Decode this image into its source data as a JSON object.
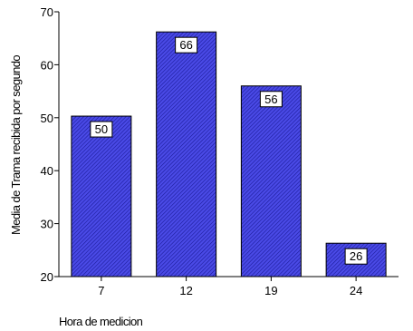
{
  "chart_data": {
    "type": "bar",
    "categories": [
      "7",
      "12",
      "19",
      "24"
    ],
    "values": [
      50.3,
      66.2,
      56.0,
      26.3
    ],
    "data_labels": [
      "50",
      "66",
      "56",
      "26"
    ],
    "xlabel": "Hora de medicion",
    "ylabel": "Media de Trama recibida por segundo",
    "ylim": [
      20,
      70
    ],
    "yticks": [
      20,
      30,
      40,
      50,
      60,
      70
    ],
    "grid": false,
    "bar_color": "#3333cc"
  }
}
